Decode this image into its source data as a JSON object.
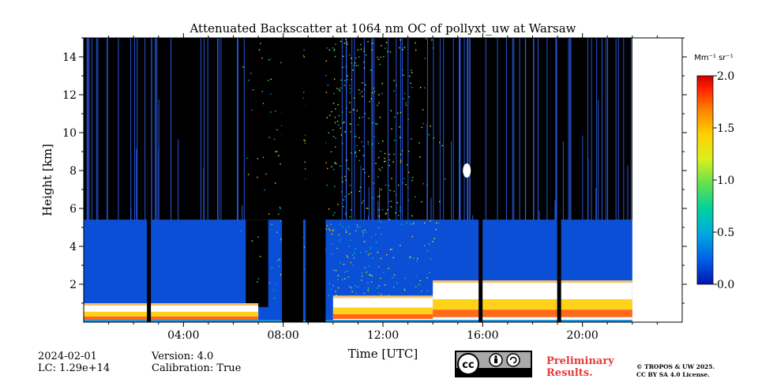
{
  "chart_data": {
    "type": "heatmap",
    "title": "Attenuated Backscatter at 1064 nm OC of pollyxt_uw at Warsaw",
    "xlabel": "Time [UTC]",
    "ylabel": "Height [km]",
    "xlim_hours": [
      0,
      24
    ],
    "ylim_km": [
      0,
      15
    ],
    "x_ticks": [
      {
        "value": 4,
        "label": "04:00"
      },
      {
        "value": 8,
        "label": "08:00"
      },
      {
        "value": 12,
        "label": "12:00"
      },
      {
        "value": 16,
        "label": "16:00"
      },
      {
        "value": 20,
        "label": "20:00"
      }
    ],
    "y_ticks": [
      {
        "value": 2,
        "label": "2"
      },
      {
        "value": 4,
        "label": "4"
      },
      {
        "value": 6,
        "label": "6"
      },
      {
        "value": 8,
        "label": "8"
      },
      {
        "value": 10,
        "label": "10"
      },
      {
        "value": 12,
        "label": "12"
      },
      {
        "value": 14,
        "label": "14"
      }
    ],
    "colorbar": {
      "label": "Mm⁻¹ sr⁻¹",
      "range": [
        0.0,
        2.0
      ],
      "ticks": [
        {
          "value": 0.0,
          "label": "0.0"
        },
        {
          "value": 0.5,
          "label": "0.5"
        },
        {
          "value": 1.0,
          "label": "1.0"
        },
        {
          "value": 1.5,
          "label": "1.5"
        },
        {
          "value": 2.0,
          "label": "2.0"
        }
      ],
      "colormap": [
        "#0016b0",
        "#0060e8",
        "#00a8e0",
        "#00d0a0",
        "#60e050",
        "#d8f020",
        "#ffd000",
        "#ff8000",
        "#ff2000",
        "#d00000"
      ]
    },
    "data_end_hour": 22.0,
    "no_signal_periods_hours": [
      [
        7.95,
        8.8
      ],
      [
        8.9,
        9.7
      ]
    ],
    "thin_gaps_hours": [
      2.6,
      15.9,
      19.05
    ],
    "noise_top_km": 5.4,
    "aerosol_layer": [
      {
        "start": 0.0,
        "end": 7.0,
        "top_km": 1.0,
        "intensity": "high"
      },
      {
        "start": 10.0,
        "end": 14.0,
        "top_km": 1.4,
        "intensity": "high"
      },
      {
        "start": 14.0,
        "end": 22.0,
        "top_km": 2.2,
        "intensity": "high"
      }
    ],
    "cloud_features": [
      {
        "hour": 15.3,
        "height_km": 8.0,
        "note": "small cloud near 8 km"
      }
    ]
  },
  "footer": {
    "date": "2024-02-01",
    "lc": "LC: 1.29e+14",
    "version": "Version: 4.0",
    "calibration": "Calibration: True",
    "preliminary_line1": "Preliminary",
    "preliminary_line2": "Results.",
    "copyright_line1": "© TROPOS & UW 2025.",
    "copyright_line2": "CC BY SA 4.0 License.",
    "license_badge": {
      "by": "BY",
      "sa": "SA"
    }
  }
}
